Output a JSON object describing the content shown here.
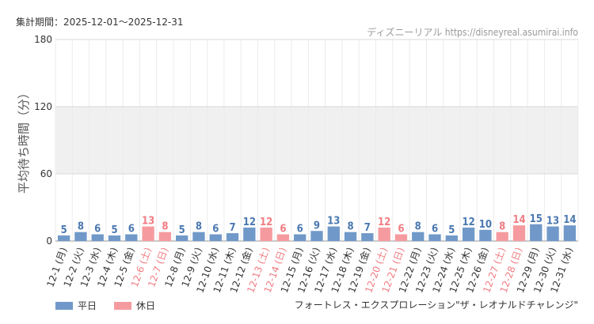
{
  "period_label": "集計期間：2025-12-01～2025-12-31",
  "source_label": "ディズニーリアル https://disneyreal.asumirai.info",
  "attraction_name": "フォートレス・エクスプロレーション\"ザ・レオナルドチャレンジ\"",
  "legend": [
    {
      "label": "平日",
      "color": "#7099c9"
    },
    {
      "label": "休日",
      "color": "#f59b9f"
    }
  ],
  "colors": {
    "weekday": "#7099c9",
    "holiday": "#f59b9f",
    "weekday_label": "#4a78b0",
    "holiday_label": "#f07c82",
    "band": "#f0f0f0",
    "grid": "#d8d8d8"
  },
  "chart_data": {
    "type": "bar",
    "ylabel": "平均待ち時間（分）",
    "ylim": [
      0,
      180
    ],
    "yticks": [
      0,
      60,
      120,
      180
    ],
    "shaded_band": [
      60,
      120
    ],
    "categories": [
      "12-1 (月)",
      "12-2 (火)",
      "12-3 (水)",
      "12-4 (木)",
      "12-5 (金)",
      "12-6 (土)",
      "12-7 (日)",
      "12-8 (月)",
      "12-9 (火)",
      "12-10 (水)",
      "12-11 (木)",
      "12-12 (金)",
      "12-13 (土)",
      "12-14 (日)",
      "12-15 (月)",
      "12-16 (火)",
      "12-17 (水)",
      "12-18 (木)",
      "12-19 (金)",
      "12-20 (土)",
      "12-21 (日)",
      "12-22 (月)",
      "12-23 (火)",
      "12-24 (水)",
      "12-25 (木)",
      "12-26 (金)",
      "12-27 (土)",
      "12-28 (日)",
      "12-29 (月)",
      "12-30 (火)",
      "12-31 (水)"
    ],
    "values": [
      5,
      8,
      6,
      5,
      6,
      13,
      8,
      5,
      8,
      6,
      7,
      12,
      12,
      6,
      6,
      9,
      13,
      8,
      7,
      12,
      6,
      8,
      6,
      5,
      12,
      10,
      8,
      14,
      15,
      13,
      14
    ],
    "day_type": [
      "weekday",
      "weekday",
      "weekday",
      "weekday",
      "weekday",
      "holiday",
      "holiday",
      "weekday",
      "weekday",
      "weekday",
      "weekday",
      "weekday",
      "holiday",
      "holiday",
      "weekday",
      "weekday",
      "weekday",
      "weekday",
      "weekday",
      "holiday",
      "holiday",
      "weekday",
      "weekday",
      "weekday",
      "weekday",
      "weekday",
      "holiday",
      "holiday",
      "weekday",
      "weekday",
      "weekday"
    ]
  }
}
